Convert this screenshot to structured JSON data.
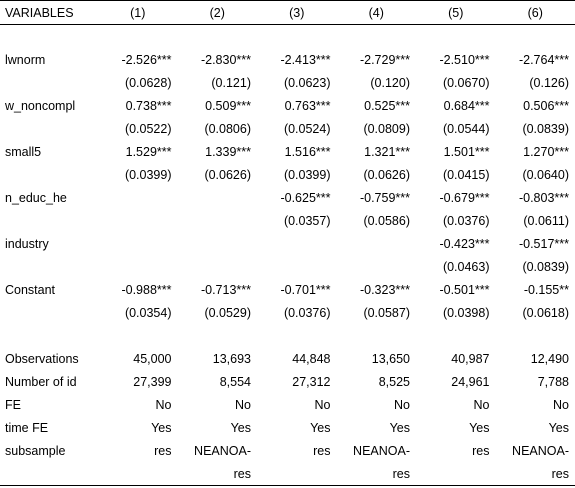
{
  "headers": [
    "VARIABLES",
    "(1)",
    "(2)",
    "(3)",
    "(4)",
    "(5)",
    "(6)"
  ],
  "rows": [
    [
      "",
      "",
      "",
      "",
      "",
      "",
      ""
    ],
    [
      "lwnorm",
      "-2.526***",
      "-2.830***",
      "-2.413***",
      "-2.729***",
      "-2.510***",
      "-2.764***"
    ],
    [
      "",
      "(0.0628)",
      "(0.121)",
      "(0.0623)",
      "(0.120)",
      "(0.0670)",
      "(0.126)"
    ],
    [
      "w_noncompl",
      "0.738***",
      "0.509***",
      "0.763***",
      "0.525***",
      "0.684***",
      "0.506***"
    ],
    [
      "",
      "(0.0522)",
      "(0.0806)",
      "(0.0524)",
      "(0.0809)",
      "(0.0544)",
      "(0.0839)"
    ],
    [
      "small5",
      "1.529***",
      "1.339***",
      "1.516***",
      "1.321***",
      "1.501***",
      "1.270***"
    ],
    [
      "",
      "(0.0399)",
      "(0.0626)",
      "(0.0399)",
      "(0.0626)",
      "(0.0415)",
      "(0.0640)"
    ],
    [
      "n_educ_he",
      "",
      "",
      "-0.625***",
      "-0.759***",
      "-0.679***",
      "-0.803***"
    ],
    [
      "",
      "",
      "",
      "(0.0357)",
      "(0.0586)",
      "(0.0376)",
      "(0.0611)"
    ],
    [
      "industry",
      "",
      "",
      "",
      "",
      "-0.423***",
      "-0.517***"
    ],
    [
      "",
      "",
      "",
      "",
      "",
      "(0.0463)",
      "(0.0839)"
    ],
    [
      "Constant",
      "-0.988***",
      "-0.713***",
      "-0.701***",
      "-0.323***",
      "-0.501***",
      "-0.155**"
    ],
    [
      "",
      "(0.0354)",
      "(0.0529)",
      "(0.0376)",
      "(0.0587)",
      "(0.0398)",
      "(0.0618)"
    ],
    [
      "",
      "",
      "",
      "",
      "",
      "",
      ""
    ],
    [
      "Observations",
      "45,000",
      "13,693",
      "44,848",
      "13,650",
      "40,987",
      "12,490"
    ],
    [
      "Number of id",
      "27,399",
      "8,554",
      "27,312",
      "8,525",
      "24,961",
      "7,788"
    ],
    [
      "FE",
      "No",
      "No",
      "No",
      "No",
      "No",
      "No"
    ],
    [
      "time FE",
      "Yes",
      "Yes",
      "Yes",
      "Yes",
      "Yes",
      "Yes"
    ],
    [
      "subsample",
      "res",
      "NEANOA-",
      "res",
      "NEANOA-",
      "res",
      "NEANOA-"
    ],
    [
      "",
      "",
      "res",
      "",
      "res",
      "",
      "res"
    ]
  ]
}
